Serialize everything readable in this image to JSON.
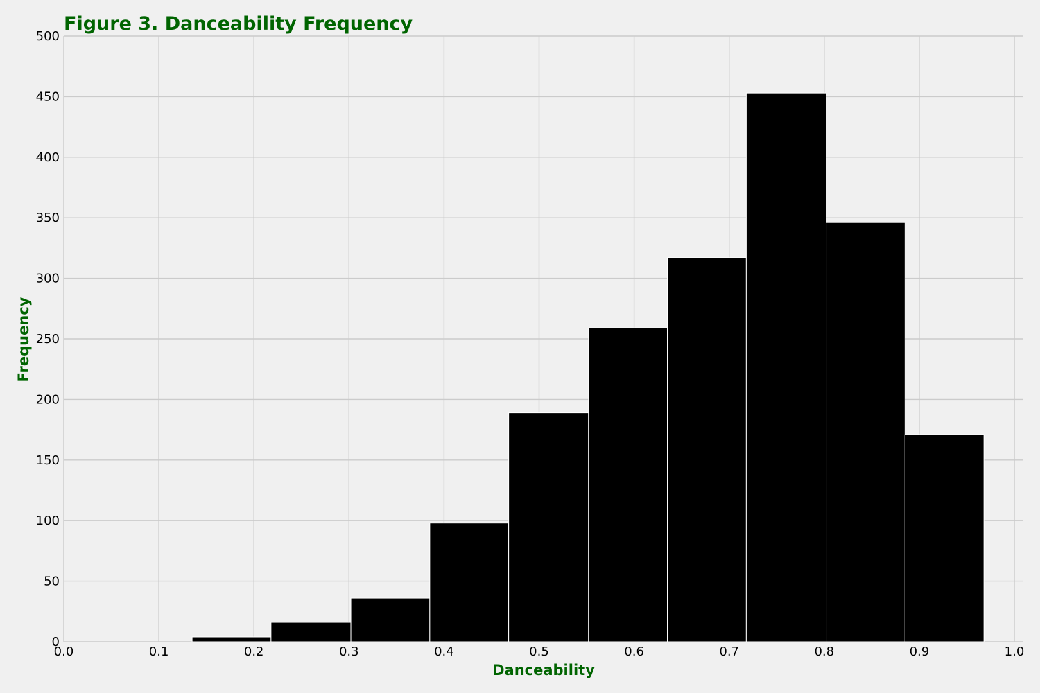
{
  "chart_data": {
    "type": "bar",
    "title": "Figure 3. Danceability Frequency",
    "xlabel": "Danceability",
    "ylabel": "Frequency",
    "xlim": [
      0.0,
      1.0
    ],
    "ylim": [
      0,
      500
    ],
    "x_ticks": [
      "0.0",
      "0.1",
      "0.2",
      "0.3",
      "0.4",
      "0.5",
      "0.6",
      "0.7",
      "0.8",
      "0.9",
      "1.0"
    ],
    "y_ticks": [
      "0",
      "50",
      "100",
      "150",
      "200",
      "250",
      "300",
      "350",
      "400",
      "450",
      "500"
    ],
    "bins": [
      {
        "x0": 0.135,
        "x1": 0.218,
        "value": 4
      },
      {
        "x0": 0.218,
        "x1": 0.302,
        "value": 16
      },
      {
        "x0": 0.302,
        "x1": 0.385,
        "value": 36
      },
      {
        "x0": 0.385,
        "x1": 0.468,
        "value": 98
      },
      {
        "x0": 0.468,
        "x1": 0.552,
        "value": 189
      },
      {
        "x0": 0.552,
        "x1": 0.635,
        "value": 259
      },
      {
        "x0": 0.635,
        "x1": 0.718,
        "value": 317
      },
      {
        "x0": 0.718,
        "x1": 0.802,
        "value": 453
      },
      {
        "x0": 0.802,
        "x1": 0.885,
        "value": 346
      },
      {
        "x0": 0.885,
        "x1": 0.968,
        "value": 171
      }
    ],
    "grid": true,
    "legend": "none",
    "colors": {
      "bar": "#000000",
      "bar_edge": "#ffffff",
      "title": "#006400",
      "axis_label": "#006400",
      "background": "#f0f0f0",
      "grid": "#cbcbcb"
    }
  }
}
